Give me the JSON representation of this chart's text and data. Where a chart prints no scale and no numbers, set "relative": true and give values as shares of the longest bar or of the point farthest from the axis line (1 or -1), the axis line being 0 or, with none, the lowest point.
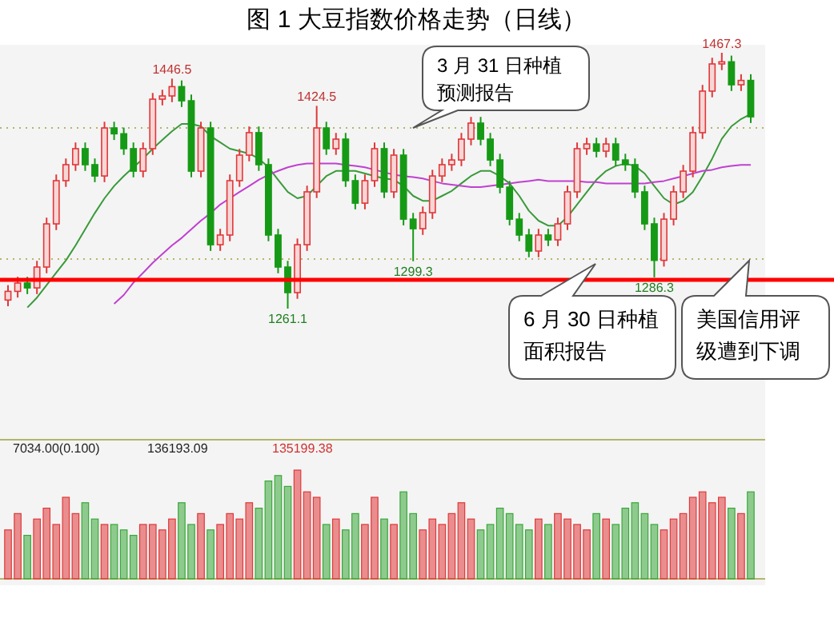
{
  "chart_data": [
    {
      "type": "candlestick",
      "title": "图 1   大豆指数价格走势（日线）",
      "colors": [
        "#e0383a",
        "#e0383a",
        "#169a16",
        "#e0383a",
        "#e0383a",
        "#e0383a",
        "#e0383a",
        "#e0383a",
        "#169a16",
        "#169a16",
        "#e0383a",
        "#169a16",
        "#169a16",
        "#169a16",
        "#e0383a",
        "#e0383a",
        "#e0383a",
        "#e0383a",
        "#169a16",
        "#169a16",
        "#e0383a",
        "#169a16",
        "#e0383a",
        "#e0383a",
        "#e0383a",
        "#e0383a",
        "#169a16",
        "#169a16",
        "#169a16",
        "#169a16",
        "#e0383a",
        "#e0383a",
        "#e0383a",
        "#169a16",
        "#e0383a",
        "#169a16",
        "#169a16",
        "#e0383a",
        "#e0383a",
        "#169a16",
        "#e0383a",
        "#169a16",
        "#169a16",
        "#e0383a",
        "#e0383a",
        "#e0383a",
        "#e0383a",
        "#e0383a",
        "#e0383a",
        "#169a16",
        "#169a16",
        "#169a16",
        "#169a16",
        "#169a16",
        "#169a16",
        "#e0383a",
        "#169a16",
        "#e0383a",
        "#e0383a",
        "#e0383a",
        "#e0383a",
        "#169a16",
        "#e0383a",
        "#169a16",
        "#169a16",
        "#169a16",
        "#169a16",
        "#169a16",
        "#e0383a",
        "#e0383a",
        "#e0383a",
        "#e0383a",
        "#e0383a",
        "#e0383a",
        "#e0383a",
        "#169a16",
        "#e0383a",
        "#169a16"
      ],
      "grid": "y",
      "yticks": [
        {
          "value": 1406.7,
          "label": null
        },
        {
          "value": 1301.0,
          "label": null
        }
      ],
      "categories": [
        null,
        null,
        null,
        null,
        null,
        null,
        null,
        null,
        null,
        null,
        null,
        null,
        null,
        null,
        null,
        null,
        null,
        null,
        null,
        null,
        null,
        null,
        null,
        null,
        null,
        null,
        null,
        null,
        null,
        null,
        null,
        null,
        null,
        null,
        null,
        null,
        null,
        null,
        null,
        null,
        null,
        null,
        null,
        null,
        null,
        null,
        null,
        null,
        null,
        null,
        null,
        null,
        null,
        null,
        null,
        null,
        null,
        null,
        null,
        null,
        null,
        null,
        null,
        null,
        null,
        null,
        null,
        null,
        null,
        null,
        null,
        null,
        null,
        null,
        null,
        null,
        null,
        null
      ],
      "ohlc": [
        [
          1268,
          1280,
          1263,
          1275
        ],
        [
          1275,
          1286.7,
          1270,
          1281.7
        ],
        [
          1281.7,
          1286.7,
          1272.8,
          1277.8
        ],
        [
          1277.8,
          1299.6,
          1272.8,
          1294.6
        ],
        [
          1294.6,
          1334.4,
          1289.6,
          1329.4
        ],
        [
          1329.4,
          1369.2,
          1324.4,
          1364.2
        ],
        [
          1364.2,
          1382.1,
          1359.2,
          1377.1
        ],
        [
          1377.1,
          1395,
          1372.1,
          1390
        ],
        [
          1390,
          1395,
          1372.1,
          1377.1
        ],
        [
          1377.1,
          1382.1,
          1363,
          1368
        ],
        [
          1368,
          1411.7,
          1363,
          1406.7
        ],
        [
          1406.7,
          1411.7,
          1397,
          1402
        ],
        [
          1402,
          1407,
          1385,
          1390
        ],
        [
          1390,
          1395,
          1366.9,
          1371.9
        ],
        [
          1371.9,
          1395,
          1366.9,
          1390
        ],
        [
          1390,
          1434.9,
          1385,
          1429.9
        ],
        [
          1429.9,
          1437.5,
          1424.9,
          1432.5
        ],
        [
          1432.5,
          1446.5,
          1427.5,
          1440
        ],
        [
          1440,
          1445,
          1423.6,
          1428.6
        ],
        [
          1428.6,
          1433.6,
          1366.9,
          1371.9
        ],
        [
          1371.9,
          1411.7,
          1366.9,
          1406.7
        ],
        [
          1406.7,
          1411.7,
          1307.6,
          1312.6
        ],
        [
          1312.6,
          1325.4,
          1307.6,
          1320.4
        ],
        [
          1320.4,
          1369.2,
          1315.4,
          1364.2
        ],
        [
          1364.2,
          1389.8,
          1359.2,
          1384.8
        ],
        [
          1384.8,
          1407.9,
          1379.8,
          1402.9
        ],
        [
          1402.9,
          1407.9,
          1372.1,
          1377.1
        ],
        [
          1377.1,
          1382.1,
          1315.4,
          1320.4
        ],
        [
          1320.4,
          1325.4,
          1289.6,
          1294.6
        ],
        [
          1294.6,
          1299.6,
          1261.1,
          1274
        ],
        [
          1274,
          1317.6,
          1269,
          1312.6
        ],
        [
          1312.6,
          1360.2,
          1307.6,
          1355.2
        ],
        [
          1355.2,
          1424.5,
          1350.2,
          1406.7
        ],
        [
          1406.7,
          1411.7,
          1385,
          1390
        ],
        [
          1390,
          1402.7,
          1385,
          1397.7
        ],
        [
          1397.7,
          1402.7,
          1359.2,
          1364.2
        ],
        [
          1364.2,
          1369.2,
          1341.1,
          1346.1
        ],
        [
          1346.1,
          1369.2,
          1341.1,
          1364.2
        ],
        [
          1364.2,
          1395,
          1359.2,
          1390
        ],
        [
          1390,
          1395,
          1350.2,
          1355.2
        ],
        [
          1355.2,
          1389.8,
          1350.2,
          1384.8
        ],
        [
          1384.8,
          1389.8,
          1328.2,
          1333.2
        ],
        [
          1333.2,
          1338.2,
          1299.3,
          1325.5
        ],
        [
          1325.5,
          1343.4,
          1320.5,
          1338.4
        ],
        [
          1338.4,
          1373,
          1333.4,
          1368
        ],
        [
          1368,
          1382.1,
          1363,
          1377.1
        ],
        [
          1377.1,
          1385.9,
          1372.1,
          1380.9
        ],
        [
          1380.9,
          1402.7,
          1375.9,
          1397.7
        ],
        [
          1397.7,
          1415.6,
          1392.7,
          1410.6
        ],
        [
          1410.6,
          1415.6,
          1392.7,
          1397.7
        ],
        [
          1397.7,
          1402.7,
          1375.9,
          1380.9
        ],
        [
          1380.9,
          1385.9,
          1354,
          1359
        ],
        [
          1359,
          1364,
          1328.2,
          1333.2
        ],
        [
          1333.2,
          1338.2,
          1315.4,
          1320.4
        ],
        [
          1320.4,
          1325.4,
          1302.5,
          1307.5
        ],
        [
          1307.5,
          1325.4,
          1302.5,
          1320.4
        ],
        [
          1320.4,
          1325.4,
          1311.5,
          1316.5
        ],
        [
          1316.5,
          1334.4,
          1311.5,
          1329.4
        ],
        [
          1329.4,
          1360.2,
          1324.4,
          1355.2
        ],
        [
          1355.2,
          1395,
          1350.2,
          1390
        ],
        [
          1390,
          1398.8,
          1385,
          1393.8
        ],
        [
          1393.8,
          1398.8,
          1383,
          1388
        ],
        [
          1388,
          1398.8,
          1383,
          1393.8
        ],
        [
          1393.8,
          1398.8,
          1375.9,
          1380.9
        ],
        [
          1380.9,
          1385.9,
          1372.1,
          1377.1
        ],
        [
          1377.1,
          1382.1,
          1350.2,
          1355.2
        ],
        [
          1355.2,
          1360.2,
          1324.4,
          1329.4
        ],
        [
          1329.4,
          1334.4,
          1286.3,
          1300
        ],
        [
          1300,
          1338.2,
          1295,
          1333.2
        ],
        [
          1333.2,
          1360.2,
          1328.2,
          1355.2
        ],
        [
          1355.2,
          1376.9,
          1350.2,
          1371.9
        ],
        [
          1371.9,
          1407.9,
          1366.9,
          1402.9
        ],
        [
          1402.9,
          1441.4,
          1397.9,
          1436.4
        ],
        [
          1436.4,
          1463.3,
          1431.4,
          1458.3
        ],
        [
          1458.3,
          1467.3,
          1453.3,
          1460
        ],
        [
          1460,
          1465,
          1436.5,
          1441.5
        ],
        [
          1441.5,
          1450,
          1436.5,
          1445
        ],
        [
          1445,
          1450,
          1410.7,
          1415.7
        ]
      ],
      "series": [
        {
          "type": "line",
          "color": "#3a9a3a",
          "values": [
            null,
            null,
            1262,
            1270,
            1280,
            1290,
            1300,
            1312,
            1325,
            1338,
            1350,
            1360,
            1368,
            1375,
            1382,
            1390,
            1397,
            1404,
            1410,
            1410,
            1408,
            1400,
            1395,
            1390,
            1388,
            1386,
            1382,
            1375,
            1365,
            1355,
            1350,
            1352,
            1360,
            1368,
            1372,
            1372,
            1372,
            1370,
            1368,
            1366,
            1365,
            1360,
            1352,
            1348,
            1348,
            1352,
            1356,
            1362,
            1368,
            1372,
            1372,
            1368,
            1362,
            1352,
            1340,
            1332,
            1328,
            1328,
            1335,
            1345,
            1355,
            1365,
            1372,
            1376,
            1378,
            1376,
            1370,
            1360,
            1350,
            1345,
            1348,
            1355,
            1368,
            1382,
            1398,
            1408,
            1414,
            1418
          ]
        },
        {
          "type": "line",
          "color": "#c040d0",
          "values": [
            null,
            null,
            null,
            null,
            null,
            null,
            null,
            null,
            null,
            null,
            null,
            1265,
            1272,
            1282,
            1290,
            1298,
            1305,
            1312,
            1318,
            1325,
            1332,
            1338,
            1345,
            1350,
            1355,
            1360,
            1365,
            1369,
            1372,
            1375,
            1377,
            1378,
            1378,
            1378,
            1378,
            1377,
            1376,
            1375,
            1373,
            1371,
            1369,
            1368,
            1367,
            1366,
            1364,
            1362,
            1361,
            1360,
            1359,
            1359,
            1360,
            1361,
            1362,
            1363,
            1364,
            1365,
            1364,
            1364,
            1364,
            1364,
            1363,
            1363,
            1362,
            1362,
            1362,
            1362,
            1362,
            1363,
            1364,
            1366,
            1368,
            1370,
            1372,
            1373,
            1375,
            1376,
            1377,
            1377
          ]
        }
      ],
      "ref_lines": [
        {
          "axis": "y",
          "value": 1284.3,
          "color": "#ff0000"
        }
      ],
      "annotations": [
        "3 月 31 日种植预测报告",
        "6 月 30 日种植面积报告",
        "美国信用评级遭到下调",
        {
          "text": "1446.5",
          "y": 1446.5
        },
        {
          "text": "1424.5",
          "y": 1424.5
        },
        {
          "text": "1261.1",
          "y": 1261.1
        },
        {
          "text": "1299.3",
          "y": 1299.3
        },
        {
          "text": "1286.3",
          "y": 1286.3
        },
        {
          "text": "1467.3",
          "y": 1467.3
        }
      ]
    },
    {
      "type": "bar",
      "relative": true,
      "colors": [
        "#e0383a",
        "#e0383a",
        "#3aa83a",
        "#e0383a",
        "#e0383a",
        "#e0383a",
        "#e0383a",
        "#e0383a",
        "#3aa83a",
        "#3aa83a",
        "#e0383a",
        "#3aa83a",
        "#3aa83a",
        "#3aa83a",
        "#e0383a",
        "#e0383a",
        "#e0383a",
        "#e0383a",
        "#3aa83a",
        "#3aa83a",
        "#e0383a",
        "#3aa83a",
        "#e0383a",
        "#e0383a",
        "#e0383a",
        "#e0383a",
        "#3aa83a",
        "#3aa83a",
        "#3aa83a",
        "#3aa83a",
        "#e0383a",
        "#e0383a",
        "#e0383a",
        "#3aa83a",
        "#e0383a",
        "#3aa83a",
        "#3aa83a",
        "#e0383a",
        "#e0383a",
        "#3aa83a",
        "#e0383a",
        "#3aa83a",
        "#3aa83a",
        "#e0383a",
        "#e0383a",
        "#e0383a",
        "#e0383a",
        "#e0383a",
        "#e0383a",
        "#3aa83a",
        "#3aa83a",
        "#3aa83a",
        "#3aa83a",
        "#3aa83a",
        "#3aa83a",
        "#e0383a",
        "#3aa83a",
        "#e0383a",
        "#e0383a",
        "#e0383a",
        "#e0383a",
        "#3aa83a",
        "#e0383a",
        "#3aa83a",
        "#3aa83a",
        "#3aa83a",
        "#3aa83a",
        "#3aa83a",
        "#e0383a",
        "#e0383a",
        "#e0383a",
        "#e0383a",
        "#e0383a",
        "#e0383a",
        "#e0383a",
        "#3aa83a",
        "#e0383a",
        "#3aa83a"
      ],
      "categories": [
        null,
        null,
        null,
        null,
        null,
        null,
        null,
        null,
        null,
        null,
        null,
        null,
        null,
        null,
        null,
        null,
        null,
        null,
        null,
        null,
        null,
        null,
        null,
        null,
        null,
        null,
        null,
        null,
        null,
        null,
        null,
        null,
        null,
        null,
        null,
        null,
        null,
        null,
        null,
        null,
        null,
        null,
        null,
        null,
        null,
        null,
        null,
        null,
        null,
        null,
        null,
        null,
        null,
        null,
        null,
        null,
        null,
        null,
        null,
        null,
        null,
        null,
        null,
        null,
        null,
        null,
        null,
        null,
        null,
        null,
        null,
        null,
        null,
        null,
        null,
        null,
        null,
        null
      ],
      "values": [
        0.45,
        0.6,
        0.4,
        0.55,
        0.65,
        0.5,
        0.75,
        0.6,
        0.7,
        0.55,
        0.5,
        0.5,
        0.45,
        0.4,
        0.5,
        0.5,
        0.45,
        0.55,
        0.7,
        0.5,
        0.6,
        0.45,
        0.5,
        0.6,
        0.55,
        0.7,
        0.65,
        0.9,
        0.95,
        0.85,
        1.0,
        0.8,
        0.75,
        0.5,
        0.55,
        0.45,
        0.6,
        0.5,
        0.75,
        0.55,
        0.5,
        0.8,
        0.6,
        0.45,
        0.55,
        0.5,
        0.6,
        0.7,
        0.55,
        0.45,
        0.5,
        0.65,
        0.6,
        0.5,
        0.45,
        0.55,
        0.5,
        0.6,
        0.55,
        0.5,
        0.45,
        0.6,
        0.55,
        0.5,
        0.65,
        0.7,
        0.6,
        0.5,
        0.45,
        0.55,
        0.6,
        0.75,
        0.8,
        0.7,
        0.75,
        0.65,
        0.6,
        0.8
      ],
      "annotations": [
        "7034.00(0.100)",
        "136193.09",
        "135199.38"
      ]
    }
  ]
}
